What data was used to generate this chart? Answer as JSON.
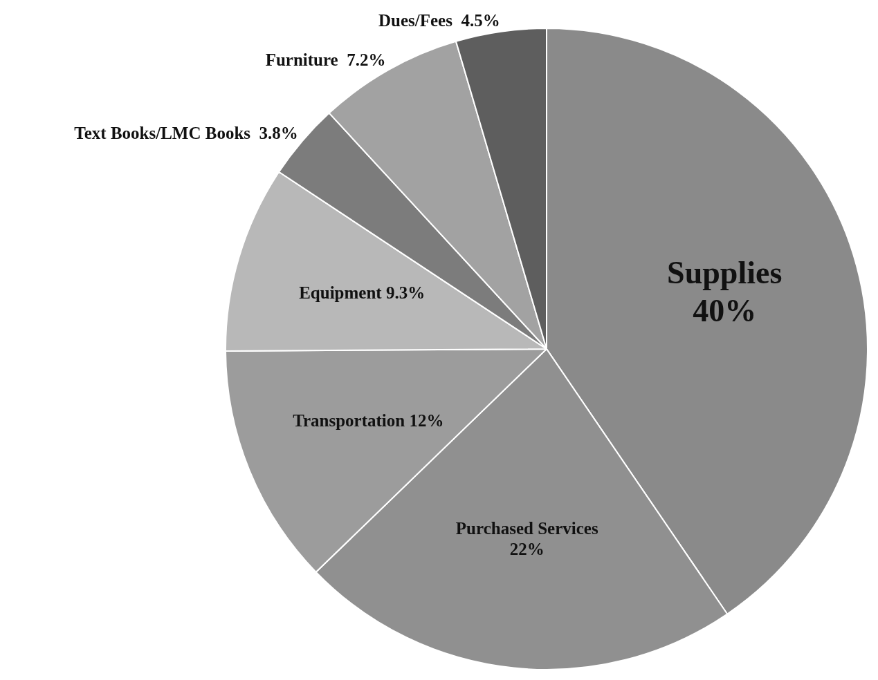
{
  "chart_data": {
    "type": "pie",
    "categories": [
      "Supplies",
      "Purchased Services",
      "Transportation",
      "Equipment",
      "Text Books/LMC Books",
      "Furniture",
      "Dues/Fees"
    ],
    "values": [
      40,
      22,
      12,
      9.3,
      3.8,
      7.2,
      4.5
    ],
    "value_labels": [
      "40%",
      "22%",
      "12%",
      "9.3%",
      "3.8%",
      "7.2%",
      "4.5%"
    ],
    "colors": [
      "#8a8a8a",
      "#909090",
      "#9c9c9c",
      "#b8b8b8",
      "#7c7c7c",
      "#a2a2a2",
      "#5e5e5e"
    ]
  }
}
